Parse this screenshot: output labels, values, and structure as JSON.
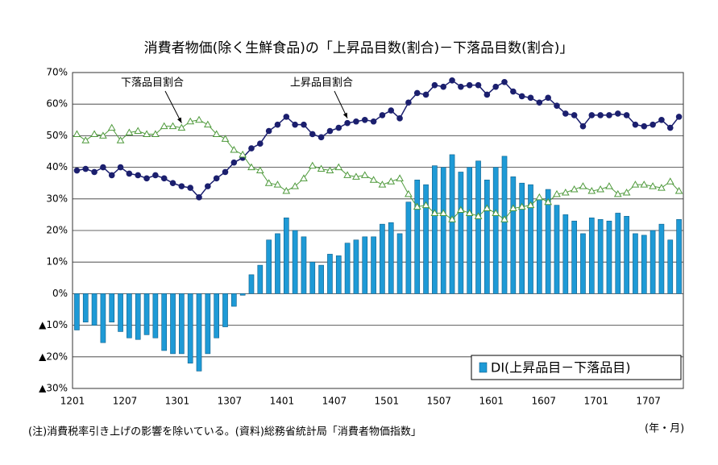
{
  "chart_data": {
    "type": "bar_line",
    "title": "消費者物価(除く生鮮食品)の「上昇品目数(割合)－下落品目数(割合)」",
    "footnote": "(注)消費税率引き上げの影響を除いている。(資料)総務省統計局「消費者物価指数」",
    "xlabel": "(年・月)",
    "categories": [
      "1201",
      null,
      null,
      null,
      null,
      null,
      "1207",
      null,
      null,
      null,
      null,
      null,
      "1301",
      null,
      null,
      null,
      null,
      null,
      "1307",
      null,
      null,
      null,
      null,
      null,
      "1401",
      null,
      null,
      null,
      null,
      null,
      "1407",
      null,
      null,
      null,
      null,
      null,
      "1501",
      null,
      null,
      null,
      null,
      null,
      "1507",
      null,
      null,
      null,
      null,
      null,
      "1601",
      null,
      null,
      null,
      null,
      null,
      "1607",
      null,
      null,
      null,
      null,
      null,
      "1701",
      null,
      null,
      null,
      null,
      null,
      "1707",
      null,
      null,
      null
    ],
    "series": [
      {
        "name": "DI(上昇品目－下落品目)",
        "kind": "bar",
        "color": "#1e9ad6",
        "values": [
          -11.5,
          -9,
          -10,
          -15.5,
          -9,
          -12,
          -14,
          -14.5,
          -13,
          -14,
          -18,
          -19,
          -19,
          -22,
          -24.5,
          -19,
          -14,
          -10.5,
          -4,
          -0.5,
          6,
          9,
          17,
          19,
          24,
          20,
          18,
          10,
          9,
          12.5,
          12,
          16,
          17,
          18,
          18,
          22,
          22.5,
          19,
          29,
          36,
          34.5,
          40.5,
          40,
          44,
          38.5,
          40,
          42,
          36,
          40,
          43.5,
          37,
          35,
          34.5,
          30,
          33,
          28,
          25,
          23,
          19,
          24,
          23.5,
          23,
          25.5,
          24.5,
          19,
          18.5,
          20,
          22,
          17,
          23.5
        ]
      },
      {
        "name": "上昇品目割合",
        "kind": "line",
        "color": "#1b1f6e",
        "marker": "circle",
        "values": [
          39,
          39.5,
          38.5,
          40,
          37.5,
          40,
          38,
          37.5,
          36.5,
          37.5,
          36.5,
          35,
          34,
          33.5,
          30.5,
          34,
          36.5,
          38.5,
          41.5,
          43,
          46,
          47.5,
          51.5,
          53.5,
          56,
          53.5,
          53.5,
          50.5,
          49.5,
          51.5,
          52.5,
          54,
          54.5,
          55,
          54.5,
          56.5,
          58,
          55.5,
          60.5,
          63.5,
          63,
          66,
          65.5,
          67.5,
          65.5,
          66,
          66,
          63,
          65.5,
          67,
          64,
          62.5,
          62,
          60.5,
          62,
          59.5,
          57,
          56.5,
          53,
          56.5,
          56.5,
          56.5,
          57,
          56.5,
          53.5,
          53,
          53.5,
          55,
          52.5,
          56
        ]
      },
      {
        "name": "下落品目割合",
        "kind": "line",
        "color": "#4f9a3c",
        "marker": "triangle",
        "values": [
          50.5,
          48.5,
          50.5,
          50,
          52.5,
          48.5,
          51,
          51.5,
          50.5,
          50.5,
          53,
          53,
          52.5,
          54.5,
          55,
          53.5,
          50.5,
          49,
          45.5,
          44,
          40,
          39,
          35,
          34.5,
          32.5,
          34,
          36.5,
          40.5,
          39.5,
          39,
          40,
          37.5,
          37,
          37.5,
          36,
          34.5,
          35.5,
          36.5,
          31.5,
          27.5,
          28,
          25.5,
          25.5,
          23.5,
          26.5,
          25.5,
          24.5,
          27,
          25.5,
          23.5,
          27,
          27.5,
          28,
          30.5,
          29,
          31.5,
          32,
          33,
          34,
          32.5,
          33,
          34,
          31.5,
          32,
          34.5,
          34.5,
          34,
          33.5,
          35.5,
          32.5
        ]
      }
    ],
    "ylim": [
      -30,
      70
    ],
    "yticks": [
      {
        "value": -30,
        "label": "▲30%"
      },
      {
        "value": -20,
        "label": "▲20%"
      },
      {
        "value": -10,
        "label": "▲10%"
      },
      {
        "value": 0,
        "label": "0%"
      },
      {
        "value": 10,
        "label": "10%"
      },
      {
        "value": 20,
        "label": "20%"
      },
      {
        "value": 30,
        "label": "30%"
      },
      {
        "value": 40,
        "label": "40%"
      },
      {
        "value": 50,
        "label": "50%"
      },
      {
        "value": 60,
        "label": "60%"
      },
      {
        "value": 70,
        "label": "70%"
      }
    ],
    "grid": true,
    "legend": "lower right"
  }
}
